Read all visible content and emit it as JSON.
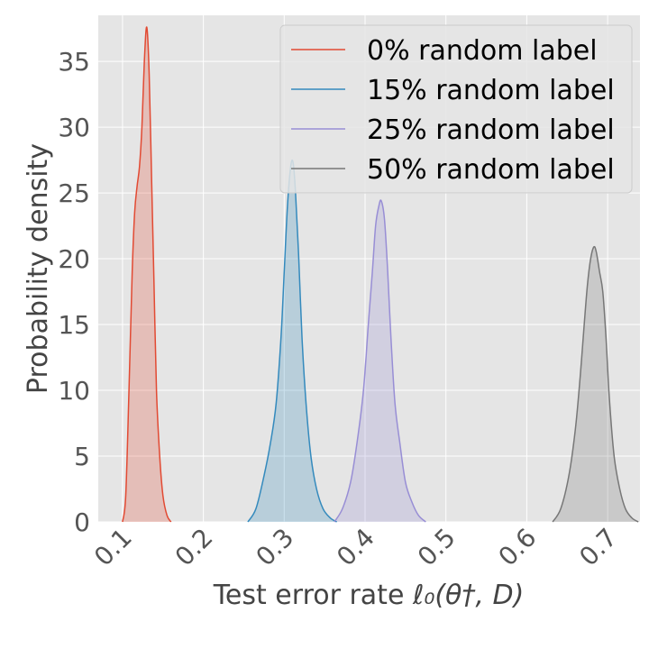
{
  "chart_data": {
    "type": "area",
    "title": "",
    "xlabel_prefix": "Test error rate ",
    "xlabel_math": "ℓ₀(θ†, D)",
    "ylabel": "Probability density",
    "xlim": [
      0.07,
      0.74
    ],
    "ylim": [
      0,
      38.5
    ],
    "x_ticks": [
      0.1,
      0.2,
      0.3,
      0.4,
      0.5,
      0.6,
      0.7
    ],
    "x_tick_labels": [
      "0.1",
      "0.2",
      "0.3",
      "0.4",
      "0.5",
      "0.6",
      "0.7"
    ],
    "y_ticks": [
      0,
      5,
      10,
      15,
      20,
      25,
      30,
      35
    ],
    "y_tick_labels": [
      "0",
      "5",
      "10",
      "15",
      "20",
      "25",
      "30",
      "35"
    ],
    "grid": true,
    "legend_position": "top-right",
    "series": [
      {
        "name": "0% random label",
        "color": "#e24a33",
        "x": [
          0.1,
          0.104,
          0.108,
          0.112,
          0.115,
          0.118,
          0.121,
          0.124,
          0.127,
          0.13,
          0.133,
          0.136,
          0.139,
          0.142,
          0.146,
          0.15,
          0.155,
          0.16
        ],
        "y": [
          0,
          2,
          10,
          19,
          23.5,
          25.5,
          27,
          30,
          35,
          37.6,
          34,
          26,
          18,
          10,
          5,
          2,
          0.5,
          0
        ]
      },
      {
        "name": "15% random label",
        "color": "#348abd",
        "x": [
          0.255,
          0.265,
          0.275,
          0.283,
          0.29,
          0.296,
          0.3,
          0.304,
          0.308,
          0.311,
          0.314,
          0.318,
          0.322,
          0.327,
          0.333,
          0.34,
          0.348,
          0.357,
          0.365
        ],
        "y": [
          0,
          1,
          3.5,
          6,
          9,
          14,
          19,
          24,
          27,
          27.3,
          25,
          20,
          14,
          9,
          5,
          2.5,
          1,
          0.3,
          0
        ]
      },
      {
        "name": "25% random label",
        "color": "#988ed5",
        "x": [
          0.362,
          0.372,
          0.382,
          0.39,
          0.398,
          0.404,
          0.409,
          0.413,
          0.417,
          0.42,
          0.424,
          0.428,
          0.432,
          0.437,
          0.443,
          0.45,
          0.458,
          0.466,
          0.475
        ],
        "y": [
          0,
          1,
          3,
          6,
          10,
          15,
          19,
          22.5,
          24,
          24.4,
          23,
          19,
          14,
          9,
          6,
          3,
          1.5,
          0.5,
          0
        ]
      },
      {
        "name": "50% random label",
        "color": "#777777",
        "x": [
          0.632,
          0.642,
          0.652,
          0.66,
          0.666,
          0.671,
          0.675,
          0.679,
          0.683,
          0.686,
          0.69,
          0.694,
          0.698,
          0.702,
          0.708,
          0.715,
          0.722,
          0.73,
          0.738
        ],
        "y": [
          0,
          1,
          3.5,
          7,
          11,
          15,
          18,
          20,
          20.9,
          20.5,
          19,
          17.5,
          14,
          9.5,
          5,
          2.5,
          1,
          0.3,
          0
        ]
      }
    ]
  }
}
